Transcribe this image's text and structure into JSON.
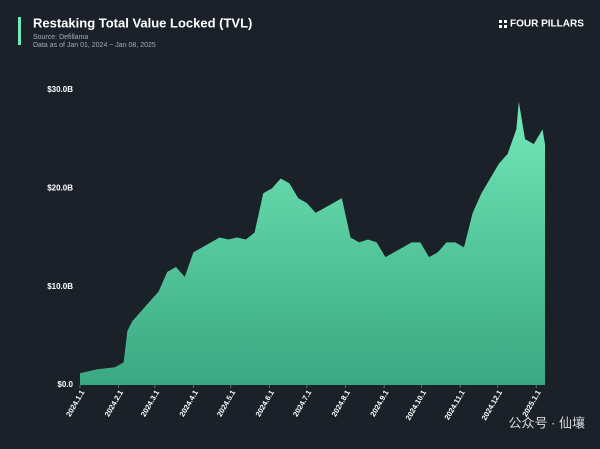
{
  "header": {
    "brand": "FOUR PILLARS",
    "watermark": "公众号 · 仙壤"
  },
  "chart_data": {
    "type": "area",
    "title": "Restaking Total Value Locked (TVL)",
    "subtitle": "Source: Defillama",
    "note": "Data as of Jan 01, 2024 ~ Jan 08, 2025",
    "color": "#72e8b8",
    "x": [
      "2024-01-01",
      "2024-01-08",
      "2024-01-15",
      "2024-01-22",
      "2024-01-29",
      "2024-02-05",
      "2024-02-08",
      "2024-02-12",
      "2024-02-19",
      "2024-02-26",
      "2024-03-04",
      "2024-03-11",
      "2024-03-18",
      "2024-03-25",
      "2024-04-01",
      "2024-04-08",
      "2024-04-15",
      "2024-04-22",
      "2024-04-29",
      "2024-05-06",
      "2024-05-13",
      "2024-05-20",
      "2024-05-27",
      "2024-06-03",
      "2024-06-10",
      "2024-06-17",
      "2024-06-24",
      "2024-07-01",
      "2024-07-08",
      "2024-07-15",
      "2024-07-22",
      "2024-07-29",
      "2024-08-05",
      "2024-08-12",
      "2024-08-19",
      "2024-08-26",
      "2024-09-02",
      "2024-09-09",
      "2024-09-16",
      "2024-09-23",
      "2024-09-30",
      "2024-10-07",
      "2024-10-14",
      "2024-10-21",
      "2024-10-28",
      "2024-11-04",
      "2024-11-11",
      "2024-11-18",
      "2024-11-25",
      "2024-12-02",
      "2024-12-09",
      "2024-12-16",
      "2024-12-18",
      "2024-12-23",
      "2024-12-30",
      "2025-01-06",
      "2025-01-08"
    ],
    "values": [
      1.2,
      1.4,
      1.6,
      1.7,
      1.8,
      2.3,
      5.5,
      6.5,
      7.5,
      8.5,
      9.5,
      11.5,
      12.0,
      11.0,
      13.5,
      14.0,
      14.5,
      15.0,
      14.8,
      15.0,
      14.8,
      15.5,
      19.5,
      20.0,
      21.0,
      20.5,
      19.0,
      18.5,
      17.5,
      18.0,
      18.5,
      19.0,
      15.0,
      14.5,
      14.8,
      14.5,
      13.0,
      13.5,
      14.0,
      14.5,
      14.5,
      13.0,
      13.5,
      14.5,
      14.5,
      14.0,
      17.5,
      19.5,
      21.0,
      22.5,
      23.5,
      26.0,
      28.8,
      25.0,
      24.5,
      26.0,
      24.5
    ],
    "xlim": [
      "2024-01-01",
      "2025-01-08"
    ],
    "xticks": [
      {
        "value": "2024-01-01",
        "label": "2024.1.1"
      },
      {
        "value": "2024-02-01",
        "label": "2024.2.1"
      },
      {
        "value": "2024-03-01",
        "label": "2024.3.1"
      },
      {
        "value": "2024-04-01",
        "label": "2024.4.1"
      },
      {
        "value": "2024-05-01",
        "label": "2024.5.1"
      },
      {
        "value": "2024-06-01",
        "label": "2024.6.1"
      },
      {
        "value": "2024-07-01",
        "label": "2024.7.1"
      },
      {
        "value": "2024-08-01",
        "label": "2024.8.1"
      },
      {
        "value": "2024-09-01",
        "label": "2024.9.1"
      },
      {
        "value": "2024-10-01",
        "label": "2024.10.1"
      },
      {
        "value": "2024-11-01",
        "label": "2024.11.1"
      },
      {
        "value": "2024-12-01",
        "label": "2024.12.1"
      },
      {
        "value": "2025-01-01",
        "label": "2025.1.1"
      }
    ],
    "ylim": [
      0,
      30
    ],
    "yticks": [
      {
        "value": 0,
        "label": "$0.0"
      },
      {
        "value": 10,
        "label": "$10.0B"
      },
      {
        "value": 20,
        "label": "$20.0B"
      },
      {
        "value": 30,
        "label": "$30.0B"
      }
    ]
  }
}
